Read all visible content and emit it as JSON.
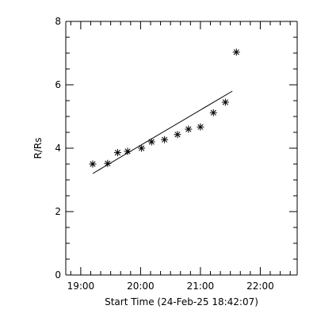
{
  "chart_data": {
    "type": "scatter",
    "xlabel": "Start Time (24-Feb-25 18:42:07)",
    "ylabel": "R/Rs",
    "xlim": [
      "18:45",
      "22:37"
    ],
    "ylim": [
      0,
      8
    ],
    "x_ticks": [
      "19:00",
      "20:00",
      "21:00",
      "22:00"
    ],
    "y_ticks": [
      "0",
      "2",
      "4",
      "6",
      "8"
    ],
    "grid": false,
    "series": [
      {
        "marker": "asterisk",
        "x": [
          "19:12",
          "19:27",
          "19:37",
          "19:47",
          "20:01",
          "20:11",
          "20:24",
          "20:37",
          "20:48",
          "21:00",
          "21:13",
          "21:25",
          "21:36"
        ],
        "y": [
          3.5,
          3.52,
          3.86,
          3.9,
          4.0,
          4.2,
          4.27,
          4.43,
          4.6,
          4.67,
          5.12,
          5.45,
          7.03
        ]
      }
    ],
    "fit_line": {
      "x": [
        "19:12",
        "21:32"
      ],
      "y": [
        3.2,
        5.8
      ]
    }
  }
}
